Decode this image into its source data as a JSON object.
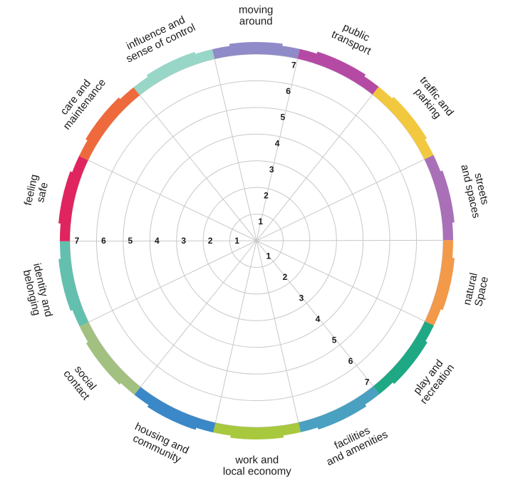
{
  "diagram": {
    "scale": {
      "min": 1,
      "max": 7,
      "ticks": [
        "1",
        "2",
        "3",
        "4",
        "5",
        "6",
        "7"
      ],
      "gridline_color": "#c8c8c8"
    },
    "segments": [
      {
        "label": [
          "moving",
          "around"
        ],
        "color": "#8f8ac8"
      },
      {
        "label": [
          "public",
          "transport"
        ],
        "color": "#b54aa5"
      },
      {
        "label": [
          "traffic and",
          "parking"
        ],
        "color": "#f2c83e"
      },
      {
        "label": [
          "streets",
          "and spaces"
        ],
        "color": "#a970b8"
      },
      {
        "label": [
          "natural",
          "Space"
        ],
        "color": "#f2994a"
      },
      {
        "label": [
          "play and",
          "recreation"
        ],
        "color": "#1ea884"
      },
      {
        "label": [
          "facilities",
          "and amenities"
        ],
        "color": "#4aa0c0"
      },
      {
        "label": [
          "work and",
          "local economy"
        ],
        "color": "#a8c83e"
      },
      {
        "label": [
          "housing and",
          "community"
        ],
        "color": "#3a88c8"
      },
      {
        "label": [
          "social",
          "contact"
        ],
        "color": "#a2c080"
      },
      {
        "label": [
          "identity and",
          "belonging"
        ],
        "color": "#63bfae"
      },
      {
        "label": [
          "feeling",
          "safe"
        ],
        "color": "#e0245f"
      },
      {
        "label": [
          "care and",
          "maintenance"
        ],
        "color": "#ee6a3c"
      },
      {
        "label": [
          "influence and",
          "sense of control"
        ],
        "color": "#98d6c8"
      }
    ]
  }
}
